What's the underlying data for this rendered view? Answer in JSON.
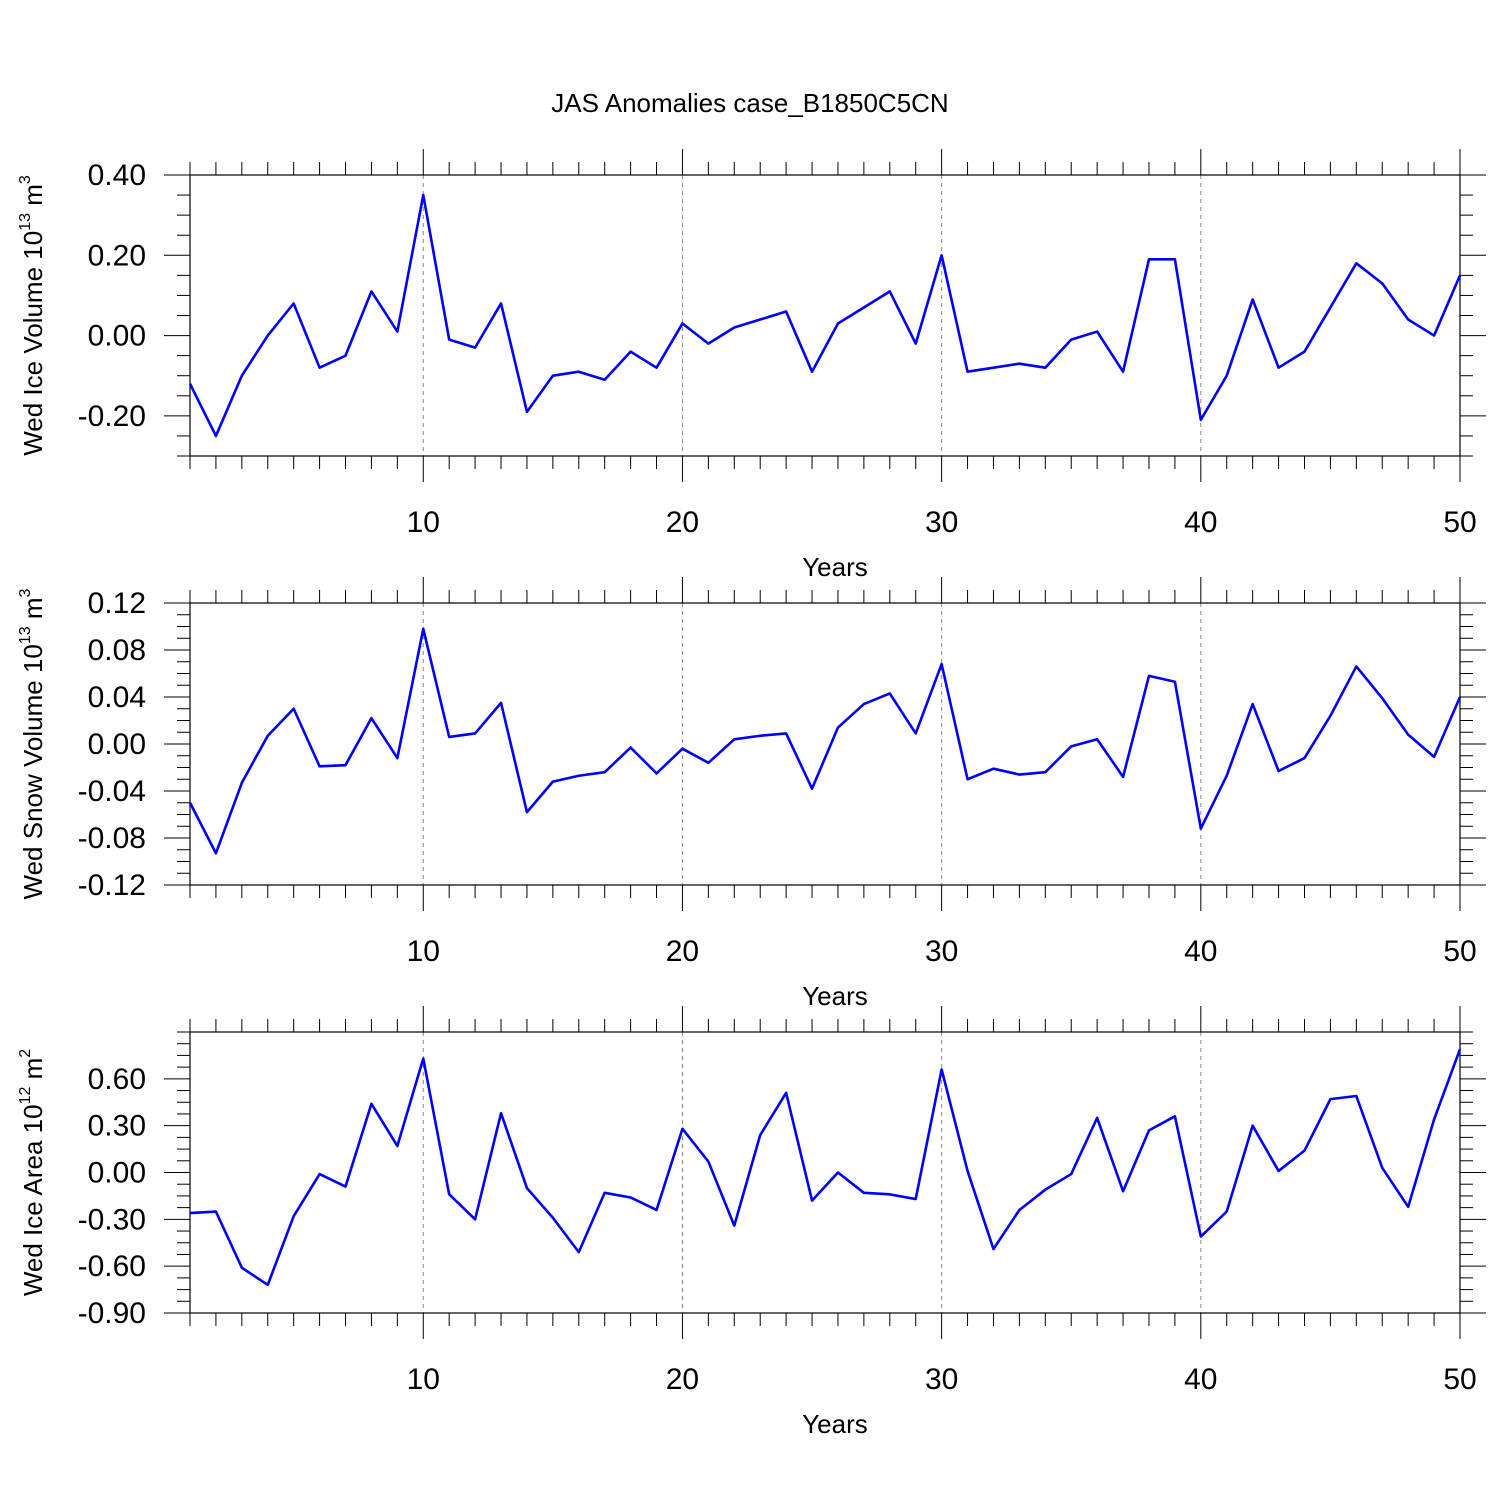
{
  "title": "JAS Anomalies case_B1850C5CN",
  "colors": {
    "line": "#0000ff",
    "axis": "#000000",
    "grid": "#888888"
  },
  "chart_data": [
    {
      "type": "line",
      "title": "JAS Anomalies case_B1850C5CN",
      "xlabel": "Years",
      "ylabel": {
        "text": "Wed Ice Volume 10",
        "sup": "13",
        "after": " m",
        "sup2": "3"
      },
      "xlim": [
        1,
        50
      ],
      "ylim": [
        -0.3,
        0.4
      ],
      "xticks": [
        10,
        20,
        30,
        40,
        50
      ],
      "yticks": [
        -0.2,
        0.0,
        0.2,
        0.4
      ],
      "ytick_labels": [
        "-0.20",
        "0.00",
        "0.20",
        "0.40"
      ],
      "grid": "vertical dashed at major x ticks",
      "series": [
        {
          "x": [
            1,
            2,
            3,
            4,
            5,
            6,
            7,
            8,
            9,
            10,
            11,
            12,
            13,
            14,
            15,
            16,
            17,
            18,
            19,
            20,
            21,
            22,
            23,
            24,
            25,
            26,
            27,
            28,
            29,
            30,
            31,
            32,
            33,
            34,
            35,
            36,
            37,
            38,
            39,
            40,
            41,
            42,
            43,
            44,
            45,
            46,
            47,
            48,
            49,
            50
          ],
          "values": [
            -0.12,
            -0.25,
            -0.1,
            0.0,
            0.08,
            -0.08,
            -0.05,
            0.11,
            0.01,
            0.35,
            -0.01,
            -0.03,
            0.08,
            -0.19,
            -0.1,
            -0.09,
            -0.11,
            -0.04,
            -0.08,
            0.03,
            -0.02,
            0.02,
            0.04,
            0.06,
            -0.09,
            0.03,
            0.07,
            0.11,
            -0.02,
            0.2,
            -0.09,
            -0.08,
            -0.07,
            -0.08,
            -0.01,
            0.01,
            -0.09,
            0.19,
            0.19,
            -0.21,
            -0.1,
            0.09,
            -0.08,
            -0.04,
            0.07,
            0.18,
            0.13,
            0.04,
            0.0,
            0.15
          ]
        }
      ]
    },
    {
      "type": "line",
      "xlabel": "Years",
      "ylabel": {
        "text": "Wed Snow Volume 10",
        "sup": "13",
        "after": " m",
        "sup2": "3"
      },
      "xlim": [
        1,
        50
      ],
      "ylim": [
        -0.12,
        0.12
      ],
      "xticks": [
        10,
        20,
        30,
        40,
        50
      ],
      "yticks": [
        -0.12,
        -0.08,
        -0.04,
        0.0,
        0.04,
        0.08,
        0.12
      ],
      "ytick_labels": [
        "-0.12",
        "-0.08",
        "-0.04",
        "0.00",
        "0.04",
        "0.08",
        "0.12"
      ],
      "grid": "vertical dashed at major x ticks",
      "series": [
        {
          "x": [
            1,
            2,
            3,
            4,
            5,
            6,
            7,
            8,
            9,
            10,
            11,
            12,
            13,
            14,
            15,
            16,
            17,
            18,
            19,
            20,
            21,
            22,
            23,
            24,
            25,
            26,
            27,
            28,
            29,
            30,
            31,
            32,
            33,
            34,
            35,
            36,
            37,
            38,
            39,
            40,
            41,
            42,
            43,
            44,
            45,
            46,
            47,
            48,
            49,
            50
          ],
          "values": [
            -0.05,
            -0.093,
            -0.033,
            0.007,
            0.03,
            -0.019,
            -0.018,
            0.022,
            -0.012,
            0.098,
            0.006,
            0.009,
            0.035,
            -0.058,
            -0.032,
            -0.027,
            -0.024,
            -0.003,
            -0.025,
            -0.004,
            -0.016,
            0.004,
            0.007,
            0.009,
            -0.038,
            0.014,
            0.034,
            0.043,
            0.009,
            0.068,
            -0.03,
            -0.021,
            -0.026,
            -0.024,
            -0.002,
            0.004,
            -0.028,
            0.058,
            0.053,
            -0.072,
            -0.027,
            0.034,
            -0.023,
            -0.012,
            0.024,
            0.066,
            0.039,
            0.008,
            -0.011,
            0.04
          ]
        }
      ]
    },
    {
      "type": "line",
      "xlabel": "Years",
      "ylabel": {
        "text": "Wed Ice Area 10",
        "sup": "12",
        "after": " m",
        "sup2": "2"
      },
      "xlim": [
        1,
        50
      ],
      "ylim": [
        -0.9,
        0.9
      ],
      "xticks": [
        10,
        20,
        30,
        40,
        50
      ],
      "yticks": [
        -0.9,
        -0.6,
        -0.3,
        0.0,
        0.3,
        0.6
      ],
      "ytick_labels": [
        "-0.90",
        "-0.60",
        "-0.30",
        "0.00",
        "0.30",
        "0.60"
      ],
      "grid": "vertical dashed at major x ticks",
      "series": [
        {
          "x": [
            1,
            2,
            3,
            4,
            5,
            6,
            7,
            8,
            9,
            10,
            11,
            12,
            13,
            14,
            15,
            16,
            17,
            18,
            19,
            20,
            21,
            22,
            23,
            24,
            25,
            26,
            27,
            28,
            29,
            30,
            31,
            32,
            33,
            34,
            35,
            36,
            37,
            38,
            39,
            40,
            41,
            42,
            43,
            44,
            45,
            46,
            47,
            48,
            49,
            50
          ],
          "values": [
            -0.26,
            -0.25,
            -0.61,
            -0.72,
            -0.28,
            -0.01,
            -0.09,
            0.44,
            0.17,
            0.73,
            -0.14,
            -0.3,
            0.38,
            -0.1,
            -0.29,
            -0.51,
            -0.13,
            -0.16,
            -0.24,
            0.28,
            0.07,
            -0.34,
            0.24,
            0.51,
            -0.18,
            -0.0,
            -0.13,
            -0.14,
            -0.17,
            0.66,
            0.01,
            -0.49,
            -0.24,
            -0.11,
            -0.01,
            0.35,
            -0.12,
            0.27,
            0.36,
            -0.41,
            -0.25,
            0.3,
            0.01,
            0.14,
            0.47,
            0.49,
            0.03,
            -0.22,
            0.34,
            0.79
          ]
        }
      ]
    }
  ]
}
